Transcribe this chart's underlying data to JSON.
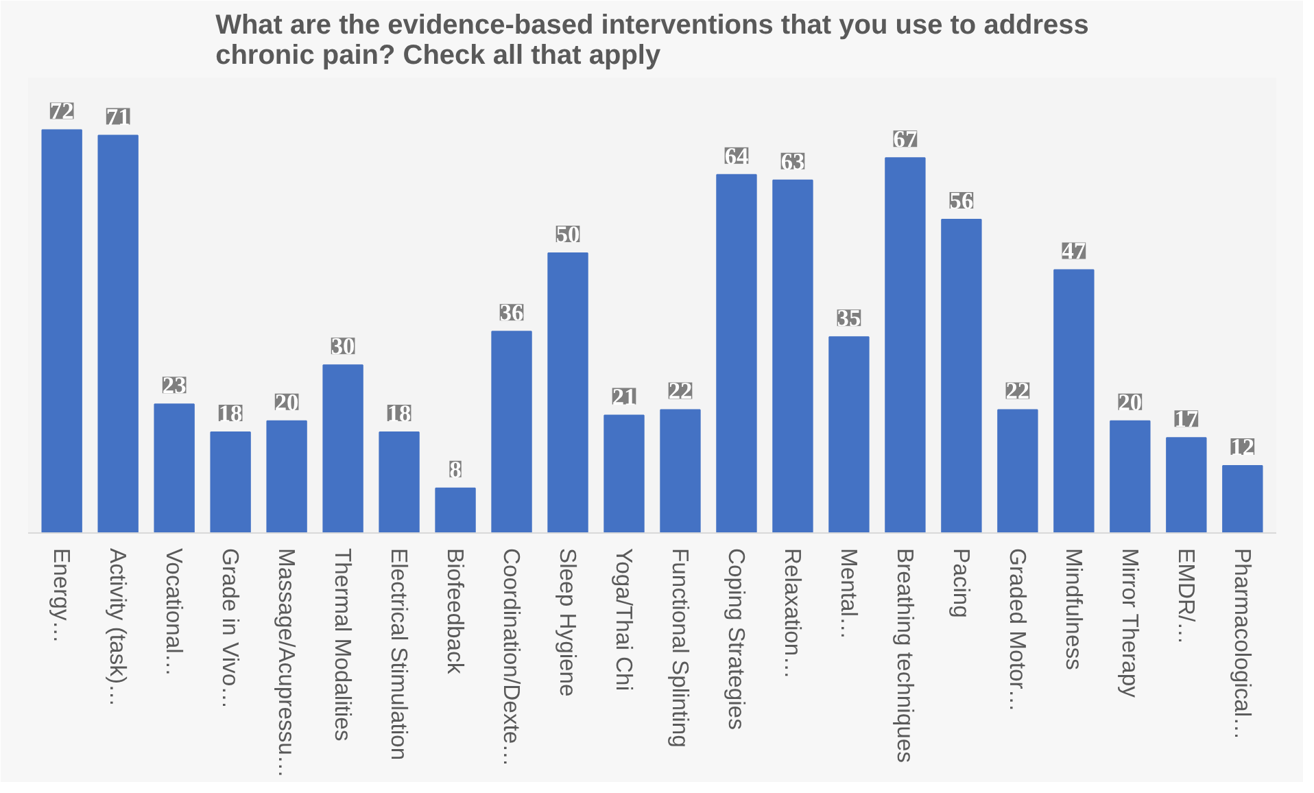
{
  "chart_data": {
    "type": "bar",
    "title": "What are the evidence-based interventions that you use to address chronic pain? Check all that apply",
    "categories": [
      "Energy…",
      "Activity (task)…",
      "Vocational…",
      "Grade in Vivo…",
      "Massage/Acupressu…",
      "Thermal Modalities",
      "Electrical Stimulation",
      "Biofeedback",
      "Coordination/Dexte…",
      "Sleep Hygiene",
      "Yoga/Thai Chi",
      "Functional Splinting",
      "Coping Strategies",
      "Relaxation…",
      "Mental…",
      "Breathing techniques",
      "Pacing",
      "Graded Motor…",
      "Mindfulness",
      "Mirror Therapy",
      "EMDR/…",
      "Pharmacological…"
    ],
    "values": [
      72,
      71,
      23,
      18,
      20,
      30,
      18,
      8,
      36,
      50,
      21,
      22,
      64,
      63,
      35,
      67,
      56,
      22,
      47,
      20,
      17,
      12
    ],
    "color": "#4472c4",
    "data_labels": true
  }
}
